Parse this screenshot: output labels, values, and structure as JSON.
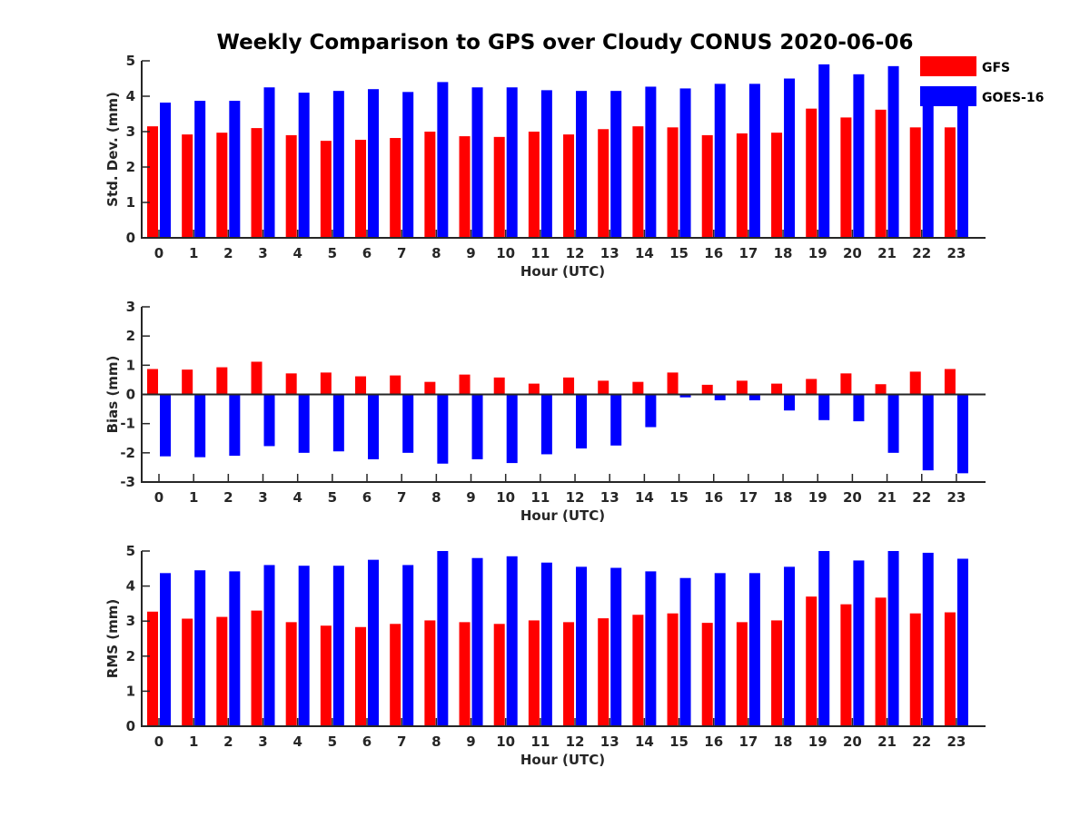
{
  "title": "Weekly Comparison to GPS over Cloudy CONUS 2020-06-06",
  "legend": [
    {
      "name": "GFS",
      "color": "#ff0000"
    },
    {
      "name": "GOES-16",
      "color": "#0000ff"
    }
  ],
  "chart_data": [
    {
      "type": "bar",
      "xlabel": "Hour (UTC)",
      "ylabel": "Std. Dev. (mm)",
      "categories": [
        "0",
        "1",
        "2",
        "3",
        "4",
        "5",
        "6",
        "7",
        "8",
        "9",
        "10",
        "11",
        "12",
        "13",
        "14",
        "15",
        "16",
        "17",
        "18",
        "19",
        "20",
        "21",
        "22",
        "23"
      ],
      "ylim": [
        0,
        5
      ],
      "yticks": [
        "0",
        "1",
        "2",
        "3",
        "4",
        "5"
      ],
      "series": [
        {
          "name": "GFS",
          "color": "#ff0000",
          "values": [
            3.15,
            2.92,
            2.97,
            3.1,
            2.9,
            2.74,
            2.77,
            2.82,
            3.0,
            2.87,
            2.85,
            3.0,
            2.92,
            3.07,
            3.15,
            3.12,
            2.9,
            2.95,
            2.97,
            3.65,
            3.4,
            3.62,
            3.12,
            3.12
          ]
        },
        {
          "name": "GOES-16",
          "color": "#0000ff",
          "values": [
            3.82,
            3.87,
            3.87,
            4.25,
            4.1,
            4.15,
            4.2,
            4.12,
            4.4,
            4.25,
            4.25,
            4.17,
            4.15,
            4.15,
            4.27,
            4.22,
            4.35,
            4.35,
            4.5,
            4.9,
            4.62,
            4.85,
            4.18,
            3.85
          ]
        }
      ]
    },
    {
      "type": "bar",
      "xlabel": "Hour (UTC)",
      "ylabel": "Bias (mm)",
      "categories": [
        "0",
        "1",
        "2",
        "3",
        "4",
        "5",
        "6",
        "7",
        "8",
        "9",
        "10",
        "11",
        "12",
        "13",
        "14",
        "15",
        "16",
        "17",
        "18",
        "19",
        "20",
        "21",
        "22",
        "23"
      ],
      "ylim": [
        -3,
        3
      ],
      "yticks": [
        "-3",
        "-2",
        "-1",
        "0",
        "1",
        "2",
        "3"
      ],
      "series": [
        {
          "name": "GFS",
          "color": "#ff0000",
          "values": [
            0.87,
            0.85,
            0.93,
            1.12,
            0.72,
            0.75,
            0.62,
            0.65,
            0.43,
            0.68,
            0.58,
            0.37,
            0.58,
            0.47,
            0.43,
            0.75,
            0.33,
            0.47,
            0.37,
            0.53,
            0.72,
            0.35,
            0.78,
            0.87
          ]
        },
        {
          "name": "GOES-16",
          "color": "#0000ff",
          "values": [
            -2.12,
            -2.15,
            -2.1,
            -1.77,
            -2.0,
            -1.95,
            -2.22,
            -2.0,
            -2.37,
            -2.22,
            -2.35,
            -2.05,
            -1.85,
            -1.75,
            -1.12,
            -0.1,
            -0.2,
            -0.2,
            -0.55,
            -0.88,
            -0.92,
            -2.0,
            -2.6,
            -2.7
          ]
        }
      ]
    },
    {
      "type": "bar",
      "xlabel": "Hour (UTC)",
      "ylabel": "RMS (mm)",
      "categories": [
        "0",
        "1",
        "2",
        "3",
        "4",
        "5",
        "6",
        "7",
        "8",
        "9",
        "10",
        "11",
        "12",
        "13",
        "14",
        "15",
        "16",
        "17",
        "18",
        "19",
        "20",
        "21",
        "22",
        "23"
      ],
      "ylim": [
        0,
        5
      ],
      "yticks": [
        "0",
        "1",
        "2",
        "3",
        "4",
        "5"
      ],
      "series": [
        {
          "name": "GFS",
          "color": "#ff0000",
          "values": [
            3.27,
            3.07,
            3.12,
            3.3,
            2.97,
            2.87,
            2.83,
            2.92,
            3.02,
            2.97,
            2.92,
            3.02,
            2.97,
            3.08,
            3.18,
            3.22,
            2.95,
            2.97,
            3.02,
            3.7,
            3.48,
            3.67,
            3.22,
            3.25
          ]
        },
        {
          "name": "GOES-16",
          "color": "#0000ff",
          "values": [
            4.37,
            4.45,
            4.42,
            4.6,
            4.58,
            4.58,
            4.75,
            4.6,
            5.0,
            4.8,
            4.85,
            4.67,
            4.55,
            4.52,
            4.42,
            4.23,
            4.37,
            4.37,
            4.55,
            5.0,
            4.73,
            5.0,
            4.95,
            4.78
          ]
        }
      ]
    }
  ]
}
